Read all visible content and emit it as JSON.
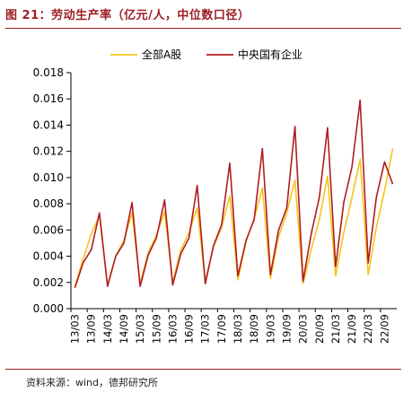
{
  "header": {
    "title": "图 21：劳动生产率（亿元/人，中位数口径）"
  },
  "footer": {
    "source": "资料来源：wind，德邦研究所"
  },
  "colors": {
    "accent": "#9c1e24",
    "series_a": "#f6c418",
    "series_b": "#b01c22"
  },
  "chart_data": {
    "type": "line",
    "title": "劳动生产率（亿元/人，中位数口径）",
    "xlabel": "",
    "ylabel": "",
    "ylim": [
      0,
      0.018
    ],
    "yticks": [
      "0.000",
      "0.002",
      "0.004",
      "0.006",
      "0.008",
      "0.010",
      "0.012",
      "0.014",
      "0.016",
      "0.018"
    ],
    "legend_position": "top",
    "grid": false,
    "x": [
      "13/03",
      "13/06",
      "13/09",
      "13/12",
      "14/03",
      "14/06",
      "14/09",
      "14/12",
      "15/03",
      "15/06",
      "15/09",
      "15/12",
      "16/03",
      "16/06",
      "16/09",
      "16/12",
      "17/03",
      "17/06",
      "17/09",
      "17/12",
      "18/03",
      "18/06",
      "18/09",
      "18/12",
      "19/03",
      "19/06",
      "19/09",
      "19/12",
      "20/03",
      "20/06",
      "20/09",
      "20/12",
      "21/03",
      "21/06",
      "21/09",
      "21/12",
      "22/03",
      "22/06",
      "22/09",
      "22/12"
    ],
    "xtick_labels": [
      "13/03",
      "13/09",
      "14/03",
      "14/09",
      "15/03",
      "15/09",
      "16/03",
      "16/09",
      "17/03",
      "17/09",
      "18/03",
      "18/09",
      "19/03",
      "19/09",
      "20/03",
      "20/09",
      "21/03",
      "21/09",
      "22/03",
      "22/09"
    ],
    "series": [
      {
        "name": "全部A股",
        "color": "#f6c418",
        "values": [
          0.0017,
          0.0038,
          0.0057,
          0.0071,
          0.0018,
          0.004,
          0.0052,
          0.0073,
          0.0019,
          0.0043,
          0.0056,
          0.0074,
          0.002,
          0.0045,
          0.0058,
          0.0077,
          0.0021,
          0.0047,
          0.0062,
          0.0086,
          0.0022,
          0.0051,
          0.0069,
          0.0092,
          0.0023,
          0.0055,
          0.0073,
          0.0098,
          0.0019,
          0.0045,
          0.0068,
          0.0101,
          0.0025,
          0.0058,
          0.0085,
          0.0114,
          0.0026,
          0.0062,
          0.009,
          0.0122
        ]
      },
      {
        "name": "中央国有企业",
        "color": "#b01c22",
        "values": [
          0.0016,
          0.0035,
          0.0045,
          0.0073,
          0.0017,
          0.004,
          0.005,
          0.0081,
          0.0017,
          0.0041,
          0.0054,
          0.0083,
          0.0018,
          0.0042,
          0.0054,
          0.0094,
          0.0019,
          0.0048,
          0.0064,
          0.0111,
          0.0025,
          0.0052,
          0.0068,
          0.0122,
          0.0026,
          0.006,
          0.0077,
          0.0139,
          0.0021,
          0.0057,
          0.0085,
          0.0138,
          0.0032,
          0.0081,
          0.0108,
          0.0159,
          0.0035,
          0.0085,
          0.0112,
          0.0095
        ]
      }
    ]
  }
}
